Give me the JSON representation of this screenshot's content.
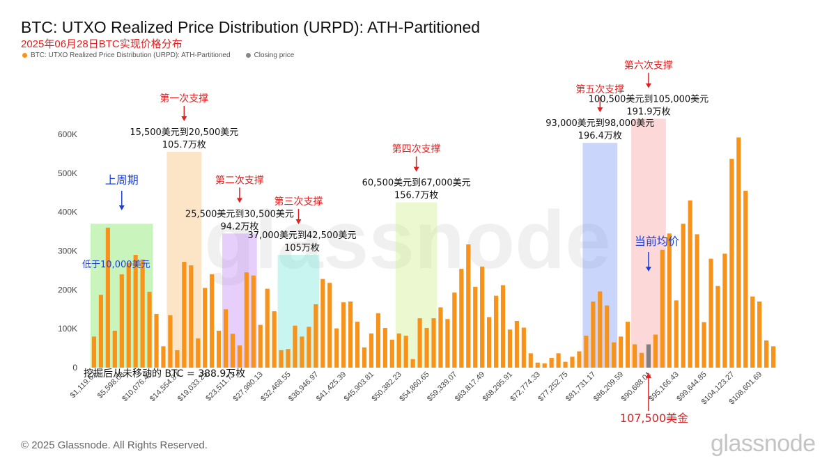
{
  "header": {
    "title": "BTC: UTXO Realized Price Distribution (URPD): ATH-Partitioned",
    "subtitle": "2025年06月28日BTC实现价格分布",
    "legend": [
      {
        "label": "BTC: UTXO Realized Price Distribution (URPD): ATH-Partitioned",
        "color": "#f7931a"
      },
      {
        "label": "Closing price",
        "color": "#888888"
      }
    ]
  },
  "footer": {
    "copyright": "© 2025 Glassnode. All Rights Reserved.",
    "logo_text": "glassnode",
    "watermark_text": "glassnode"
  },
  "colors": {
    "bar": "#f7931a",
    "closing_bar": "#808080",
    "annotation_red": "#e02020",
    "annotation_blue": "#1a3fd8"
  },
  "chart_data": {
    "type": "bar",
    "ylim": [
      0,
      650000
    ],
    "y_ticks": [
      0,
      100000,
      200000,
      300000,
      400000,
      500000,
      600000
    ],
    "y_tick_labels": [
      "0",
      "100K",
      "200K",
      "300K",
      "400K",
      "500K",
      "600K"
    ],
    "x_tick_labels": [
      "$1,119.67",
      "$5,598.03",
      "$10,076.43",
      "$14,554.87",
      "$19,033.25",
      "$23,511.71",
      "$27,990.13",
      "$32,468.55",
      "$36,946.97",
      "$41,425.39",
      "$45,903.81",
      "$50,382.23",
      "$54,860.65",
      "$59,339.07",
      "$63,817.49",
      "$68,295.91",
      "$72,774.33",
      "$77,252.75",
      "$81,731.17",
      "$86,209.59",
      "$90,688.01",
      "$95,166.43",
      "$99,644.85",
      "$104,123.27",
      "$108,601.69"
    ],
    "closing_index": 80,
    "values": [
      80000,
      187000,
      360000,
      95000,
      240000,
      270000,
      290000,
      278000,
      195000,
      138000,
      55000,
      135000,
      45000,
      272000,
      263000,
      75000,
      205000,
      240000,
      95000,
      150000,
      87000,
      57000,
      245000,
      237000,
      110000,
      203000,
      145000,
      45000,
      48000,
      108000,
      80000,
      105000,
      163000,
      228000,
      218000,
      101000,
      168000,
      170000,
      118000,
      52000,
      88000,
      140000,
      102000,
      72000,
      88000,
      82000,
      22000,
      127000,
      102000,
      127000,
      155000,
      125000,
      193000,
      254000,
      317000,
      208000,
      260000,
      130000,
      185000,
      212000,
      98000,
      120000,
      103000,
      37000,
      13000,
      11000,
      25000,
      37000,
      15000,
      28000,
      42000,
      82000,
      170000,
      196000,
      160000,
      65000,
      80000,
      118000,
      60000,
      38000,
      60000,
      85000,
      303000,
      345000,
      173000,
      370000,
      430000,
      343000,
      117000,
      280000,
      210000,
      293000,
      537000,
      592000,
      455000,
      183000,
      170000,
      70000,
      55000
    ],
    "zones": [
      {
        "name": "上周期",
        "start": 0,
        "end": 8,
        "color": "#7fe860",
        "top_value": 370000,
        "label": "低于10,000美元",
        "label_color": "#1a3fd8",
        "label_pos": "inside"
      },
      {
        "name": "第一次支撑",
        "start": 11,
        "end": 15,
        "color": "#f8c27a",
        "top_value": 555000,
        "label": "15,500美元到20,500美元",
        "amount": "105.7万枚"
      },
      {
        "name": "第二次支撑",
        "start": 19,
        "end": 23,
        "color": "#c58cf5",
        "top_value": 345000,
        "label": "25,500美元到30,500美元",
        "amount": "94.2万枚"
      },
      {
        "name": "第三次支撑",
        "start": 27,
        "end": 32,
        "color": "#7be8d8",
        "top_value": 290000,
        "label": "37,000美元到42,500美元",
        "amount": "105万枚"
      },
      {
        "name": "第四次支撑",
        "start": 44,
        "end": 49,
        "color": "#d2f08e",
        "top_value": 425000,
        "label": "60,500美元到67,000美元",
        "amount": "156.7万枚"
      },
      {
        "name": "第五次支撑",
        "start": 71,
        "end": 75,
        "color": "#7f9cf5",
        "top_value": 578000,
        "label": "93,000美元到98,000美元",
        "amount": "196.4万枚"
      },
      {
        "name": "第六次支撑",
        "start": 78,
        "end": 82,
        "color": "#f7a3a3",
        "top_value": 640000,
        "label": "100,500美元到105,000美元",
        "amount": "191.9万枚"
      }
    ],
    "annotations": {
      "current_avg": "当前均价",
      "price_label": "107,500美金",
      "unmoved": "挖掘后从未移动的 BTC = 388.9万枚"
    }
  }
}
